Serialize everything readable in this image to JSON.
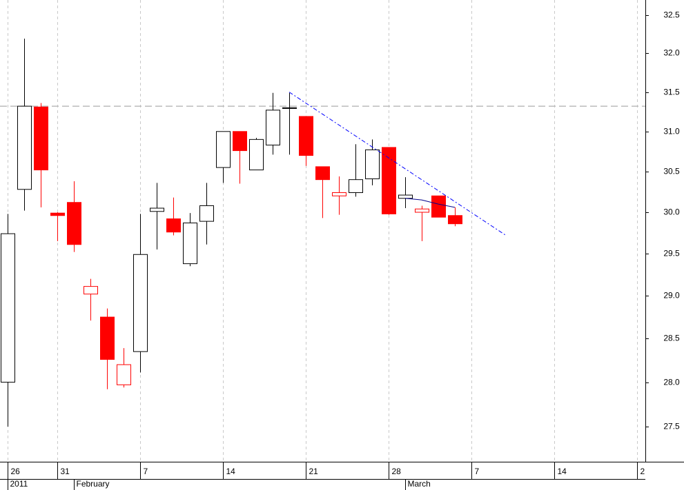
{
  "chart_data": {
    "type": "candlestick",
    "log_scale": true,
    "grid": true,
    "xlim": [
      -0.458,
      38.5
    ],
    "ylim": [
      27.11,
      32.7
    ],
    "yticks": [
      27.5,
      {
        "value": 28,
        "label": "28.0"
      },
      28.5,
      {
        "value": 29,
        "label": "29.0"
      },
      29.5,
      {
        "value": 30,
        "label": "30.0"
      },
      30.5,
      {
        "value": 31,
        "label": "31.0"
      },
      31.5,
      {
        "value": 32,
        "label": "32.0"
      },
      32.5
    ],
    "xticks": [
      {
        "value": 0,
        "label": "26"
      },
      {
        "value": 3,
        "label": "31"
      },
      {
        "value": 8,
        "label": "7"
      },
      {
        "value": 13,
        "label": "14"
      },
      {
        "value": 18,
        "label": "21"
      },
      {
        "value": 23,
        "label": "28"
      },
      {
        "value": 28,
        "label": "7"
      },
      {
        "value": 33,
        "label": "14"
      },
      {
        "value": 38,
        "label": "2"
      }
    ],
    "period_ticks": [
      {
        "value": 0,
        "label": "2011"
      },
      {
        "value": 4,
        "label": "February"
      },
      {
        "value": 24,
        "label": "March"
      }
    ],
    "up_color": "#000000",
    "down_color": "#ff0000",
    "series": {
      "open": [
        28.0,
        30.28,
        31.31,
        29.99,
        30.12,
        29.02,
        28.75,
        27.97,
        28.35,
        30.01,
        29.92,
        29.38,
        29.89,
        30.55,
        31.0,
        30.52,
        30.83,
        31.3,
        31.19,
        30.56,
        30.2,
        30.24,
        30.41,
        30.8,
        30.17,
        30.0,
        30.2,
        29.96
      ],
      "high": [
        29.98,
        32.19,
        31.36,
        30.0,
        30.38,
        29.2,
        28.85,
        28.39,
        29.98,
        30.36,
        30.18,
        29.99,
        30.36,
        31.0,
        31.0,
        30.92,
        31.49,
        31.49,
        31.19,
        30.56,
        30.44,
        30.84,
        30.9,
        30.8,
        30.43,
        30.08,
        30.2,
        30.06
      ],
      "low": [
        27.5,
        30.02,
        30.06,
        29.65,
        29.52,
        28.71,
        27.92,
        27.94,
        28.11,
        29.55,
        29.72,
        29.35,
        29.61,
        30.36,
        30.35,
        30.52,
        30.71,
        30.71,
        30.57,
        29.93,
        29.97,
        30.19,
        30.33,
        29.97,
        30.05,
        29.65,
        29.94,
        29.83
      ],
      "close": [
        29.74,
        31.32,
        30.52,
        29.96,
        29.61,
        29.11,
        28.26,
        28.2,
        29.49,
        30.05,
        29.76,
        29.87,
        30.08,
        31.0,
        30.76,
        30.9,
        31.27,
        31.3,
        30.7,
        30.4,
        30.24,
        30.4,
        30.77,
        29.98,
        30.21,
        30.04,
        29.94,
        29.86
      ]
    },
    "reference_line": {
      "value": 31.32,
      "color": "#bbbbbb"
    },
    "trendline": {
      "x": [
        17,
        30.08
      ],
      "values": [
        31.5,
        29.72
      ],
      "color": "#0000ff"
    },
    "average": {
      "x": [
        24,
        25,
        26,
        27
      ],
      "values": [
        30.17,
        30.15,
        30.1,
        30.06
      ],
      "color": "#00008b"
    }
  }
}
